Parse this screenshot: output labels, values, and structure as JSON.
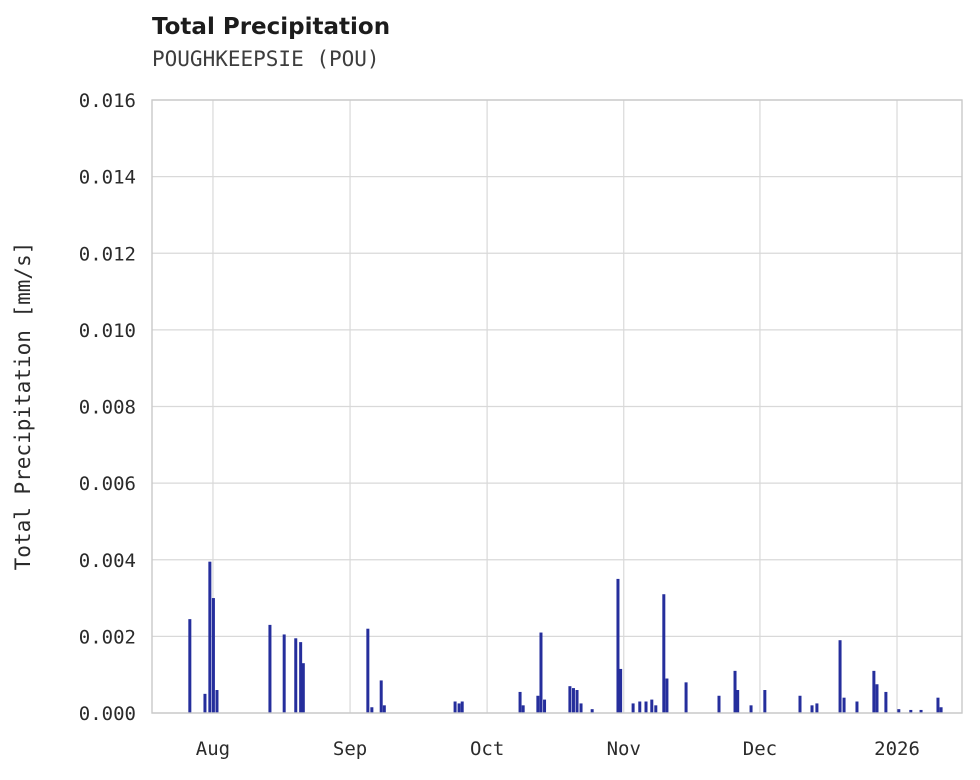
{
  "header": {
    "title": "Total Precipitation",
    "subtitle": "POUGHKEEPSIE (POU)"
  },
  "chart_data": {
    "type": "bar",
    "title": "Total Precipitation",
    "subtitle": "POUGHKEEPSIE (POU)",
    "xlabel": "",
    "ylabel": "Total Precipitation [mm/s]",
    "ylim": [
      0,
      0.016
    ],
    "xlim": [
      0,
      182
    ],
    "grid": true,
    "legend": "none",
    "colors": {
      "bar": "#252e9c",
      "grid": "#d9d9d9",
      "border": "#c9c9c9"
    },
    "y_ticks": [
      0.0,
      0.002,
      0.004,
      0.006,
      0.008,
      0.01,
      0.012,
      0.014,
      0.016
    ],
    "y_tick_labels": [
      "0.000",
      "0.002",
      "0.004",
      "0.006",
      "0.008",
      "0.010",
      "0.012",
      "0.014",
      "0.016"
    ],
    "x_ticks": [
      {
        "pos": 13.7,
        "label": "Aug"
      },
      {
        "pos": 44.5,
        "label": "Sep"
      },
      {
        "pos": 75.3,
        "label": "Oct"
      },
      {
        "pos": 106.0,
        "label": "Nov"
      },
      {
        "pos": 136.6,
        "label": "Dec"
      },
      {
        "pos": 167.4,
        "label": "2026"
      }
    ],
    "x_unit": "days from plot start (mid-July 2025)",
    "series": [
      {
        "name": "Total Precipitation",
        "points": [
          [
            8.5,
            0.00245
          ],
          [
            11.9,
            0.0005
          ],
          [
            13.0,
            0.00395
          ],
          [
            13.8,
            0.003
          ],
          [
            14.6,
            0.0006
          ],
          [
            26.5,
            0.0023
          ],
          [
            29.7,
            0.00205
          ],
          [
            32.3,
            0.00195
          ],
          [
            33.4,
            0.00185
          ],
          [
            34.0,
            0.0013
          ],
          [
            48.5,
            0.0022
          ],
          [
            49.4,
            0.00015
          ],
          [
            51.5,
            0.00085
          ],
          [
            52.2,
            0.0002
          ],
          [
            68.1,
            0.0003
          ],
          [
            69.0,
            0.00025
          ],
          [
            69.7,
            0.0003
          ],
          [
            82.7,
            0.00055
          ],
          [
            83.4,
            0.0002
          ],
          [
            86.7,
            0.00045
          ],
          [
            87.4,
            0.0021
          ],
          [
            88.2,
            0.00035
          ],
          [
            93.9,
            0.0007
          ],
          [
            94.7,
            0.00065
          ],
          [
            95.5,
            0.0006
          ],
          [
            96.4,
            0.00025
          ],
          [
            98.9,
            0.0001
          ],
          [
            104.7,
            0.0035
          ],
          [
            105.3,
            0.00115
          ],
          [
            108.1,
            0.00025
          ],
          [
            109.6,
            0.0003
          ],
          [
            111.0,
            0.0003
          ],
          [
            112.3,
            0.00035
          ],
          [
            113.2,
            0.0002
          ],
          [
            115.0,
            0.0031
          ],
          [
            115.7,
            0.0009
          ],
          [
            120.0,
            0.0008
          ],
          [
            127.4,
            0.00045
          ],
          [
            131.0,
            0.0011
          ],
          [
            131.6,
            0.0006
          ],
          [
            134.6,
            0.0002
          ],
          [
            137.7,
            0.0006
          ],
          [
            145.6,
            0.00045
          ],
          [
            148.3,
            0.0002
          ],
          [
            149.4,
            0.00025
          ],
          [
            154.6,
            0.0019
          ],
          [
            155.5,
            0.0004
          ],
          [
            158.4,
            0.0003
          ],
          [
            162.2,
            0.0011
          ],
          [
            162.9,
            0.00075
          ],
          [
            164.9,
            0.00055
          ],
          [
            167.8,
            0.0001
          ],
          [
            170.5,
            8e-05
          ],
          [
            172.8,
            8e-05
          ],
          [
            176.6,
            0.0004
          ],
          [
            177.3,
            0.00015
          ]
        ]
      }
    ]
  }
}
